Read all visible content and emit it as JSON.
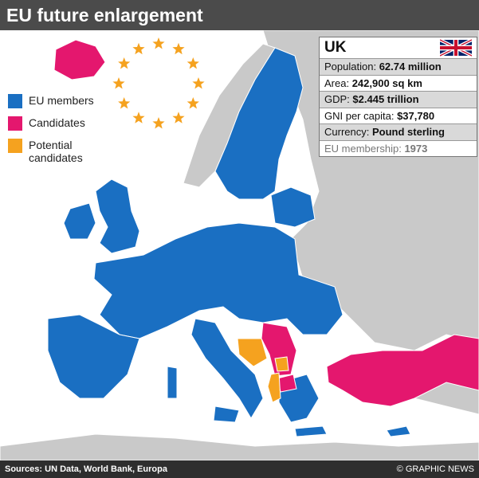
{
  "header": {
    "title": "EU future enlargement"
  },
  "legend": [
    {
      "label": "EU members",
      "color": "#1a6fc2"
    },
    {
      "label": "Candidates",
      "color": "#e4176e"
    },
    {
      "label": "Potential candidates",
      "color": "#f5a21f"
    }
  ],
  "info_box": {
    "country": "UK",
    "rows": [
      {
        "label": "Population:",
        "value": "62.74 million"
      },
      {
        "label": "Area:",
        "value": "242,900 sq km"
      },
      {
        "label": "GDP:",
        "value": "$2.445 trillion"
      },
      {
        "label": "GNI per capita:",
        "value": "$37,780"
      },
      {
        "label": "Currency:",
        "value": "Pound sterling"
      },
      {
        "label": "EU membership:",
        "value": "1973"
      }
    ]
  },
  "footer": {
    "source": "Sources: UN Data, World Bank, Europa",
    "credit": "© GRAPHIC NEWS"
  }
}
